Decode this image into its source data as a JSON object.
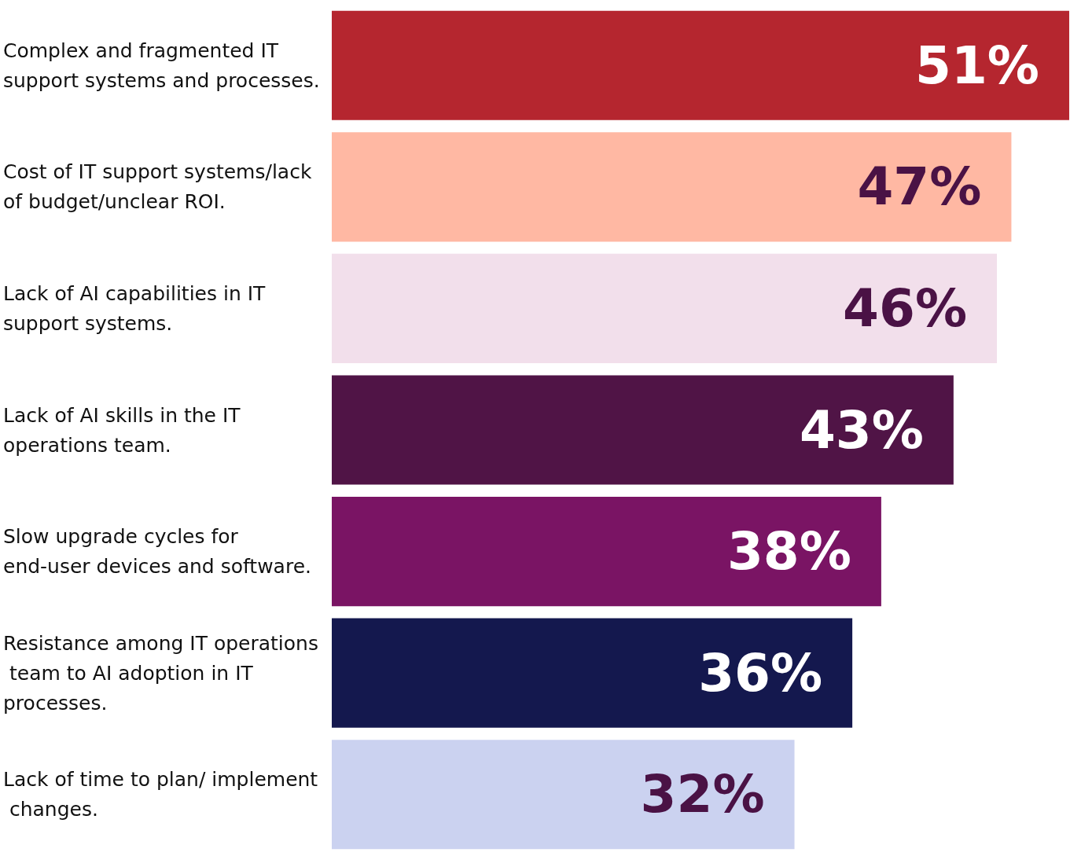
{
  "chart_data": {
    "type": "bar",
    "orientation": "horizontal",
    "categories": [
      "Complex and fragmented IT support systems and processes.",
      "Cost of IT support systems/lack of budget/unclear ROI.",
      "Lack of AI capabilities in IT support systems.",
      "Lack of AI skills in the IT operations team.",
      "Slow upgrade cycles for end-user devices and software.",
      "Resistance among IT operations team to AI adoption in IT processes.",
      "Lack of time to plan/ implement changes."
    ],
    "values": [
      51,
      47,
      46,
      43,
      38,
      36,
      32
    ],
    "value_labels": [
      "51%",
      "47%",
      "46%",
      "43%",
      "38%",
      "36%",
      "32%"
    ],
    "colors": [
      "#b5262f",
      "#ffb8a3",
      "#f2dfeb",
      "#501446",
      "#7a1464",
      "#14184e",
      "#cbd2f0"
    ]
  }
}
